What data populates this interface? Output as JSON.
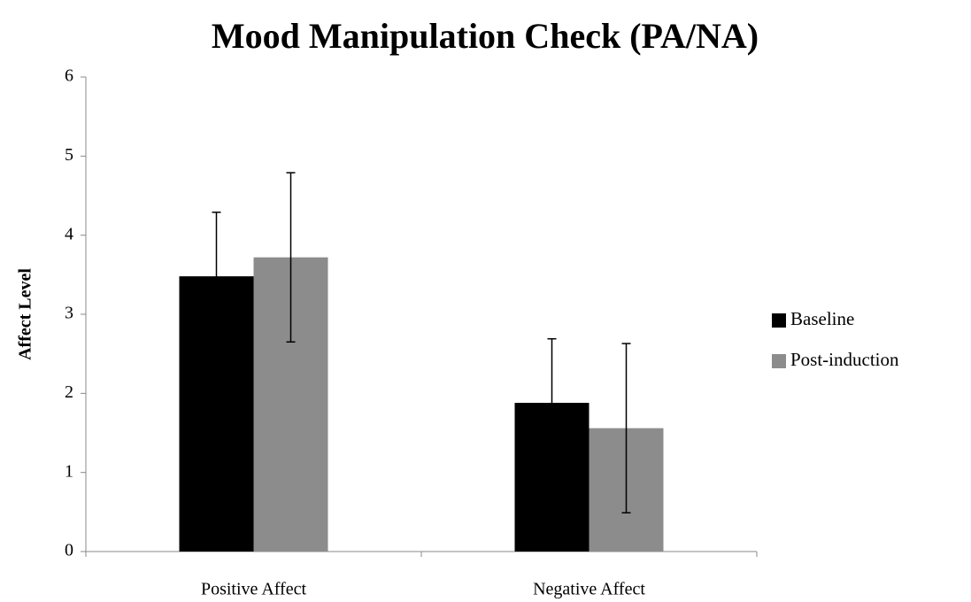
{
  "chart_data": {
    "type": "bar",
    "title": "Mood Manipulation Check (PA/NA)",
    "y_label": "Affect Level",
    "categories": [
      "Positive Affect",
      "Negative Affect"
    ],
    "series": [
      {
        "name": "Baseline",
        "color": "#000000",
        "values": [
          3.48,
          1.88
        ],
        "errors": [
          0.81,
          0.81
        ]
      },
      {
        "name": "Post-induction",
        "color": "#8c8c8c",
        "values": [
          3.72,
          1.56
        ],
        "errors": [
          1.07,
          1.07
        ]
      }
    ],
    "ylim": [
      0,
      6
    ],
    "yticks": [
      0,
      1,
      2,
      3,
      4,
      5,
      6
    ],
    "grid": false,
    "legend": "right"
  }
}
